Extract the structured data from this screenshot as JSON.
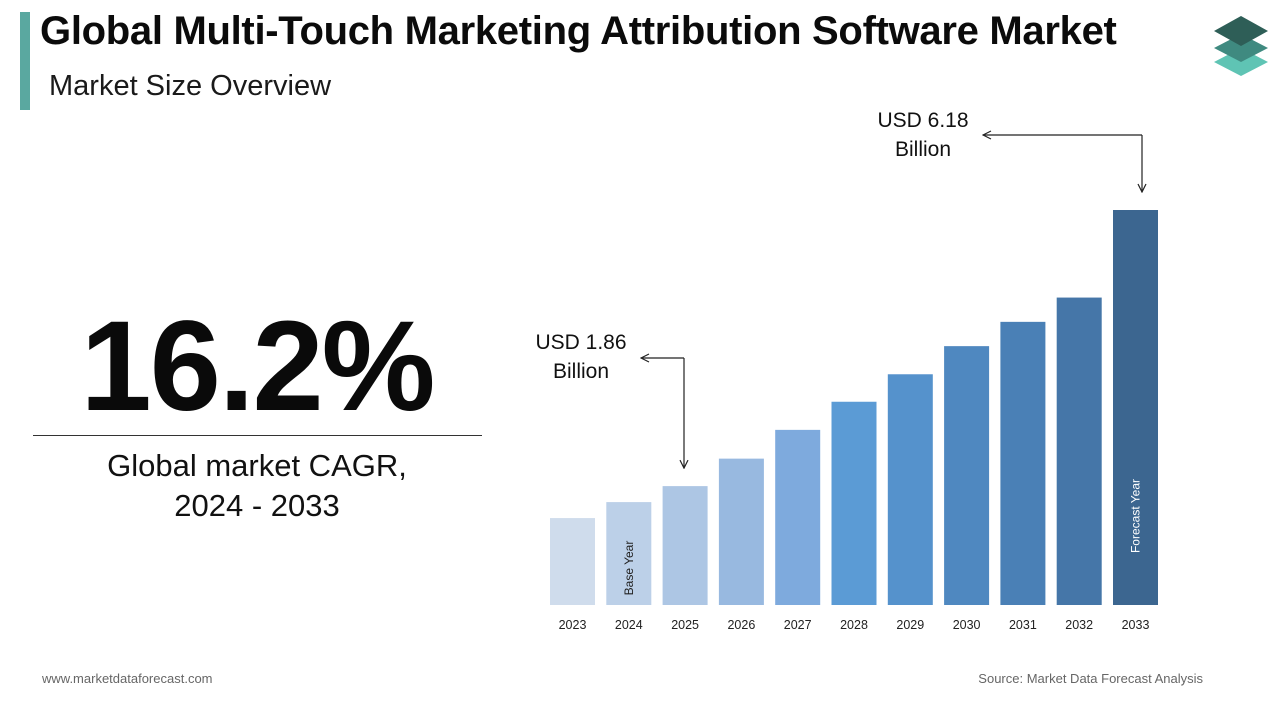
{
  "header": {
    "title": "Global Multi-Touch Marketing Attribution Software Market",
    "subtitle": "Market Size Overview"
  },
  "logo": {
    "icon": "stacked-layers-logo-icon",
    "colors": [
      "#2e5e57",
      "#3f8a80",
      "#5fc4b4"
    ]
  },
  "cagr": {
    "value": "16.2%",
    "label_line1": "Global market CAGR,",
    "label_line2": "2024 - 2033"
  },
  "chart_data": {
    "type": "bar",
    "categories": [
      "2023",
      "2024",
      "2025",
      "2026",
      "2027",
      "2028",
      "2029",
      "2030",
      "2031",
      "2032",
      "2033"
    ],
    "values": [
      1.36,
      1.61,
      1.86,
      2.29,
      2.74,
      3.18,
      3.61,
      4.05,
      4.43,
      4.81,
      6.18
    ],
    "bar_labels": {
      "1": "Base Year",
      "10": "Forecast Year"
    },
    "bar_colors": [
      "#cfdcec",
      "#bcd0e8",
      "#adc6e4",
      "#98b9e0",
      "#7eaadd",
      "#5b9bd5",
      "#5592cc",
      "#4f88c0",
      "#4a80b6",
      "#4576a8",
      "#3c6690"
    ],
    "annotations": [
      {
        "bar_index": 2,
        "line1": "USD 1.86",
        "line2": "Billion"
      },
      {
        "bar_index": 10,
        "line1": "USD 6.18",
        "line2": "Billion"
      }
    ],
    "xlabel": "",
    "ylabel": "",
    "grid": false,
    "legend": "none"
  },
  "footer": {
    "website": "www.marketdataforecast.com",
    "source": "Source: Market Data Forecast Analysis"
  }
}
